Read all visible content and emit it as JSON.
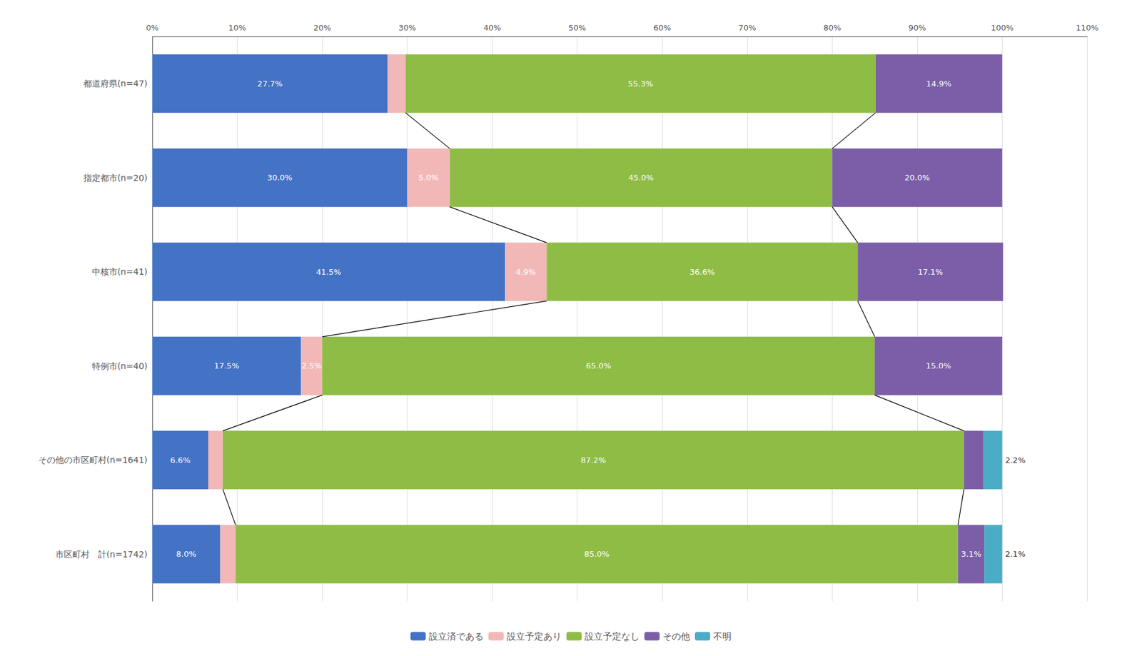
{
  "chart_data": {
    "type": "bar",
    "orientation": "horizontal",
    "stacked": true,
    "categories": [
      "市区町村　計(n=1742)",
      "その他の市区町村(n=1641)",
      "特例市(n=40)",
      "中核市(n=41)",
      "指定都市(n=20)",
      "都道府県(n=47)"
    ],
    "series": [
      {
        "name": "設立済である",
        "color": "#4472c4",
        "values": [
          8.0,
          6.6,
          17.5,
          41.5,
          30.0,
          27.7
        ],
        "value_labels": [
          "8.0%",
          "6.6%",
          "17.5%",
          "41.5%",
          "30.0%",
          "27.7%"
        ]
      },
      {
        "name": "設立予定あり",
        "color": "#f2b8b8",
        "values": [
          1.8,
          1.7,
          2.5,
          4.9,
          5.0,
          2.1
        ],
        "value_labels": [
          null,
          null,
          "2.5%",
          "4.9%",
          "5.0%",
          null
        ]
      },
      {
        "name": "設立予定なし",
        "color": "#8fbc45",
        "values": [
          85.0,
          87.2,
          65.0,
          36.6,
          45.0,
          55.3
        ],
        "value_labels": [
          "85.0%",
          "87.2%",
          "65.0%",
          "36.6%",
          "45.0%",
          "55.3%"
        ]
      },
      {
        "name": "その他",
        "color": "#7b5ea7",
        "values": [
          3.1,
          2.3,
          15.0,
          17.1,
          20.0,
          14.9
        ],
        "value_labels": [
          "3.1%",
          null,
          "15.0%",
          "17.1%",
          "20.0%",
          "14.9%"
        ]
      },
      {
        "name": "不明",
        "color": "#4bacc6",
        "values": [
          2.1,
          2.2,
          0.0,
          0.0,
          0.0,
          0.0
        ],
        "value_labels": [
          "2.1%",
          "2.2%",
          null,
          null,
          null,
          null
        ]
      }
    ],
    "xlim": [
      0,
      110
    ],
    "xticks": [
      {
        "value": 0,
        "label": "0%"
      },
      {
        "value": 10,
        "label": "10%"
      },
      {
        "value": 20,
        "label": "20%"
      },
      {
        "value": 30,
        "label": "30%"
      },
      {
        "value": 40,
        "label": "40%"
      },
      {
        "value": 50,
        "label": "50%"
      },
      {
        "value": 60,
        "label": "60%"
      },
      {
        "value": 70,
        "label": "70%"
      },
      {
        "value": 80,
        "label": "80%"
      },
      {
        "value": 90,
        "label": "90%"
      },
      {
        "value": 100,
        "label": "100%"
      },
      {
        "value": 110,
        "label": "110%"
      }
    ],
    "grid": true,
    "legend": "bottom",
    "data_labels": true
  }
}
